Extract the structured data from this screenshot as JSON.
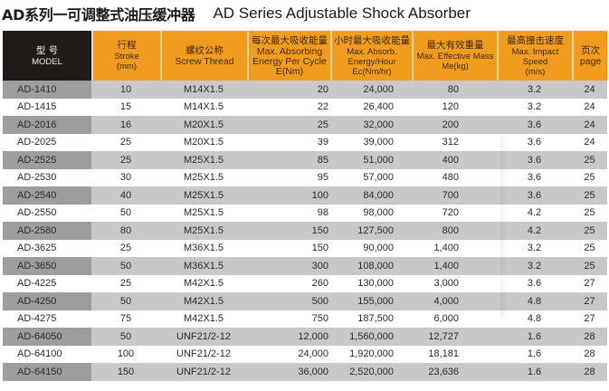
{
  "title": {
    "cn": "AD系列一可调整式油压缓冲器",
    "en": "AD Series Adjustable Shock Absorber"
  },
  "colors": {
    "header_orange": "#f29c1f",
    "header_dark": "#1e1b18",
    "row_gray": "#c8c8c6",
    "model_gray": "#9d9d9b"
  },
  "columns": [
    {
      "cn": "型 号",
      "en": "MODEL"
    },
    {
      "cn": "行程",
      "en": "Stroke",
      "en2": "(mm)"
    },
    {
      "cn": "螺纹公称",
      "en": "Screw Thread"
    },
    {
      "cn": "每次最大吸收能量",
      "en": "Max.  Absorbing",
      "en2": "Energy Per Cycle",
      "en3": "E(Nm)"
    },
    {
      "cn": "小时最大吸收能量",
      "en": "Max. Absorb.",
      "en2": "Energy/Hour",
      "en3": "Ec(Nm/hr)"
    },
    {
      "cn": "最大有效重量",
      "en": "Max. Effective Mass",
      "en2": "Me(kg)"
    },
    {
      "cn": "最高撞击速度",
      "en": "Max. Impact Speed",
      "en2": "(m/s)"
    },
    {
      "cn": "页次",
      "en": "page"
    }
  ],
  "rows": [
    {
      "model": "AD-1410",
      "stroke": "10",
      "thread": "M14X1.5",
      "energy_cycle": "20",
      "energy_hour": "24,000",
      "mass": "80",
      "speed": "3.2",
      "page": "24"
    },
    {
      "model": "AD-1415",
      "stroke": "15",
      "thread": "M14X1.5",
      "energy_cycle": "22",
      "energy_hour": "26,400",
      "mass": "120",
      "speed": "3.2",
      "page": "24"
    },
    {
      "model": "AD-2016",
      "stroke": "16",
      "thread": "M20X1.5",
      "energy_cycle": "25",
      "energy_hour": "32,000",
      "mass": "200",
      "speed": "3.6",
      "page": "24"
    },
    {
      "model": "AD-2025",
      "stroke": "25",
      "thread": "M20X1.5",
      "energy_cycle": "39",
      "energy_hour": "39,000",
      "mass": "312",
      "speed": "3.6",
      "page": "24"
    },
    {
      "model": "AD-2525",
      "stroke": "25",
      "thread": "M25X1.5",
      "energy_cycle": "85",
      "energy_hour": "51,000",
      "mass": "400",
      "speed": "3.6",
      "page": "25"
    },
    {
      "model": "AD-2530",
      "stroke": "30",
      "thread": "M25X1.5",
      "energy_cycle": "95",
      "energy_hour": "57,000",
      "mass": "480",
      "speed": "3.6",
      "page": "25"
    },
    {
      "model": "AD-2540",
      "stroke": "40",
      "thread": "M25X1.5",
      "energy_cycle": "100",
      "energy_hour": "84,000",
      "mass": "700",
      "speed": "3.6",
      "page": "25"
    },
    {
      "model": "AD-2550",
      "stroke": "50",
      "thread": "M25X1.5",
      "energy_cycle": "98",
      "energy_hour": "98,000",
      "mass": "720",
      "speed": "4.2",
      "page": "25"
    },
    {
      "model": "AD-2580",
      "stroke": "80",
      "thread": "M25X1.5",
      "energy_cycle": "150",
      "energy_hour": "127,500",
      "mass": "800",
      "speed": "4.2",
      "page": "25"
    },
    {
      "model": "AD-3625",
      "stroke": "25",
      "thread": "M36X1.5",
      "energy_cycle": "150",
      "energy_hour": "90,000",
      "mass": "1,400",
      "speed": "3.2",
      "page": "25"
    },
    {
      "model": "AD-3650",
      "stroke": "50",
      "thread": "M36X1.5",
      "energy_cycle": "300",
      "energy_hour": "108,000",
      "mass": "1,400",
      "speed": "3.2",
      "page": "25"
    },
    {
      "model": "AD-4225",
      "stroke": "25",
      "thread": "M42X1.5",
      "energy_cycle": "260",
      "energy_hour": "130,000",
      "mass": "3,000",
      "speed": "3.6",
      "page": "27"
    },
    {
      "model": "AD-4250",
      "stroke": "50",
      "thread": "M42X1.5",
      "energy_cycle": "500",
      "energy_hour": "155,000",
      "mass": "4,000",
      "speed": "4.8",
      "page": "27"
    },
    {
      "model": "AD-4275",
      "stroke": "75",
      "thread": "M42X1.5",
      "energy_cycle": "750",
      "energy_hour": "187,500",
      "mass": "6,000",
      "speed": "4.8",
      "page": "27"
    },
    {
      "model": "AD-64050",
      "stroke": "50",
      "thread": "UNF21/2-12",
      "energy_cycle": "12,000",
      "energy_hour": "1,560,000",
      "mass": "12,727",
      "speed": "1.6",
      "page": "28"
    },
    {
      "model": "AD-64100",
      "stroke": "100",
      "thread": "UNF21/2-12",
      "energy_cycle": "24,000",
      "energy_hour": "1,920,000",
      "mass": "18,181",
      "speed": "1.6",
      "page": "28"
    },
    {
      "model": "AD-64150",
      "stroke": "150",
      "thread": "UNF21/2-12",
      "energy_cycle": "36,000",
      "energy_hour": "2,520,000",
      "mass": "23,636",
      "speed": "1.6",
      "page": "28"
    }
  ]
}
